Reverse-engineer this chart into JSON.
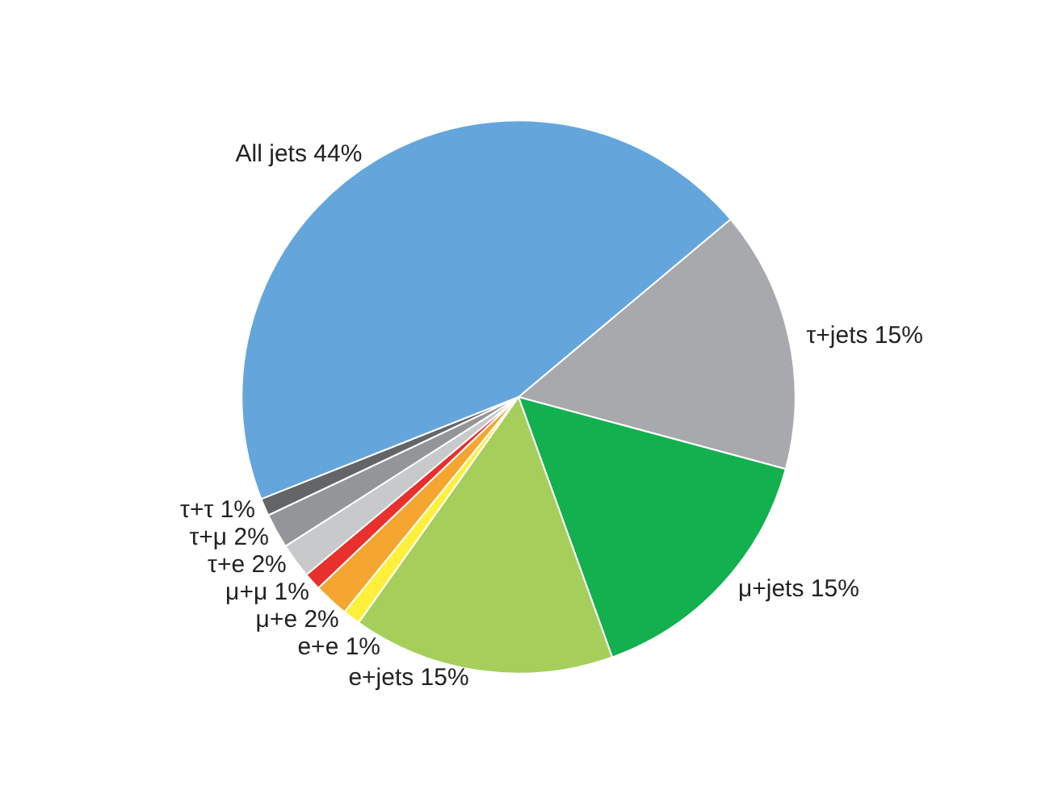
{
  "chart_data": {
    "type": "pie",
    "categories": [
      "τ+jets",
      "μ+jets",
      "e+jets",
      "e+e",
      "μ+e",
      "μ+μ",
      "τ+e",
      "τ+μ",
      "τ+τ",
      "All jets"
    ],
    "values": [
      15,
      15,
      15,
      1,
      2,
      1,
      2,
      2,
      1,
      44
    ],
    "colors": [
      "#a7a9ac",
      "#13b04f",
      "#a5cf5a",
      "#fff03c",
      "#f4a631",
      "#e8302d",
      "#c8c9cb",
      "#949598",
      "#646567",
      "#64a6dc"
    ],
    "value_labels": [
      "15%",
      "15%",
      "15%",
      "1%",
      "2%",
      "1%",
      "2%",
      "2%",
      "1%",
      "44%"
    ],
    "legend": false
  }
}
